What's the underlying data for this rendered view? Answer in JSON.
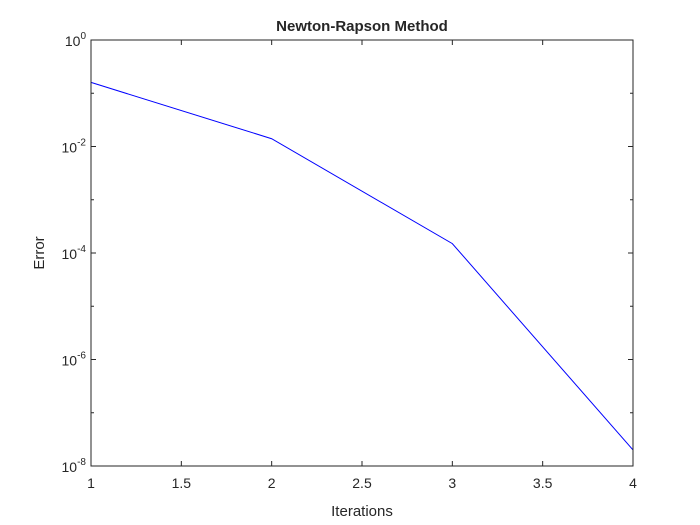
{
  "chart_data": {
    "type": "line",
    "title": "Newton-Rapson Method",
    "xlabel": "Iterations",
    "ylabel": "Error",
    "xlim": [
      1,
      4
    ],
    "ylim": [
      1e-08,
      1
    ],
    "yscale": "log",
    "grid": false,
    "legend": "none",
    "x_ticks": [
      1,
      1.5,
      2,
      2.5,
      3,
      3.5,
      4
    ],
    "x_tick_labels": [
      "1",
      "1.5",
      "2",
      "2.5",
      "3",
      "3.5",
      "4"
    ],
    "y_ticks": [
      1,
      0.01,
      0.0001,
      1e-06,
      1e-08
    ],
    "y_tick_labels": [
      {
        "base": "10",
        "exp": "0"
      },
      {
        "base": "10",
        "exp": "-2"
      },
      {
        "base": "10",
        "exp": "-4"
      },
      {
        "base": "10",
        "exp": "-6"
      },
      {
        "base": "10",
        "exp": "-8"
      }
    ],
    "series": [
      {
        "color": "#0000ff",
        "x": [
          1,
          2,
          3,
          4
        ],
        "y": [
          0.16,
          0.014,
          0.00015,
          2e-08
        ]
      }
    ],
    "axis_color": "#262626"
  }
}
